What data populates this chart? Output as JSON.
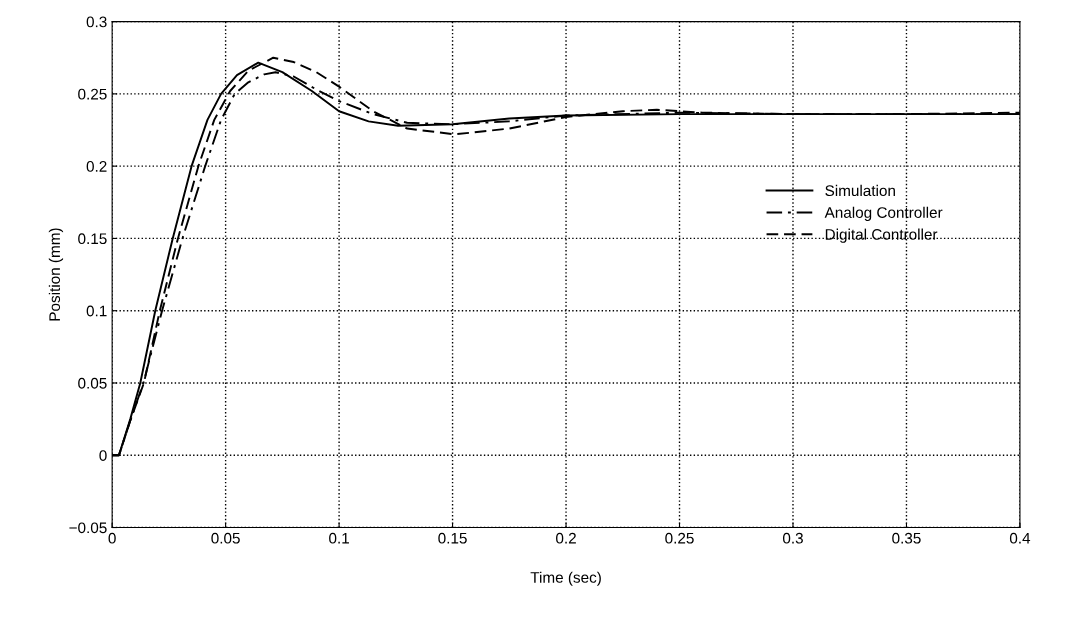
{
  "chart_data": {
    "type": "line",
    "xlabel": "Time (sec)",
    "ylabel": "Position (mm)",
    "xlim": [
      0,
      0.4
    ],
    "xticks": [
      0,
      0.05,
      0.1,
      0.15,
      0.2,
      0.25,
      0.3,
      0.35,
      0.4
    ],
    "ylim": [
      -0.05,
      0.3
    ],
    "yticks": [
      {
        "value": -0.05,
        "label": "−0.05"
      },
      0,
      0.05,
      0.1,
      0.15,
      0.2,
      0.25,
      0.3
    ],
    "grid": true,
    "legend": "right",
    "marker": "none",
    "series": [
      {
        "name": "Simulation",
        "color": "#000000",
        "line_style": "solid",
        "x": [
          0,
          0.003,
          0.008,
          0.0124,
          0.019,
          0.0267,
          0.035,
          0.042,
          0.048,
          0.055,
          0.0644,
          0.075,
          0.088,
          0.1,
          0.113,
          0.126,
          0.15,
          0.175,
          0.2,
          0.25,
          0.3,
          0.35,
          0.4
        ],
        "values": [
          0,
          0,
          0.025,
          0.05,
          0.1,
          0.15,
          0.2,
          0.232,
          0.25,
          0.263,
          0.2716,
          0.265,
          0.252,
          0.238,
          0.231,
          0.228,
          0.229,
          0.233,
          0.235,
          0.236,
          0.236,
          0.236,
          0.236
        ]
      },
      {
        "name": "Analog Controller",
        "color": "#000000",
        "line_style": "dashdot",
        "x": [
          0,
          0.003,
          0.008,
          0.0138,
          0.022,
          0.031,
          0.041,
          0.048,
          0.054,
          0.06,
          0.067,
          0.072,
          0.08,
          0.09,
          0.1,
          0.115,
          0.13,
          0.15,
          0.175,
          0.2,
          0.25,
          0.3,
          0.35,
          0.4
        ],
        "values": [
          0,
          0,
          0.024,
          0.05,
          0.1,
          0.15,
          0.2,
          0.232,
          0.25,
          0.258,
          0.2635,
          0.265,
          0.262,
          0.253,
          0.245,
          0.236,
          0.23,
          0.229,
          0.231,
          0.235,
          0.237,
          0.236,
          0.236,
          0.236
        ]
      },
      {
        "name": "Digital Controller",
        "color": "#000000",
        "line_style": "dashed",
        "x": [
          0,
          0.003,
          0.008,
          0.014,
          0.021,
          0.029,
          0.038,
          0.045,
          0.052,
          0.06,
          0.071,
          0.08,
          0.09,
          0.1,
          0.115,
          0.13,
          0.151,
          0.175,
          0.2,
          0.225,
          0.24,
          0.26,
          0.3,
          0.35,
          0.4
        ],
        "values": [
          0,
          0,
          0.024,
          0.05,
          0.1,
          0.15,
          0.2,
          0.232,
          0.252,
          0.266,
          0.275,
          0.272,
          0.265,
          0.255,
          0.238,
          0.226,
          0.222,
          0.226,
          0.234,
          0.238,
          0.239,
          0.237,
          0.236,
          0.236,
          0.237
        ]
      }
    ]
  }
}
